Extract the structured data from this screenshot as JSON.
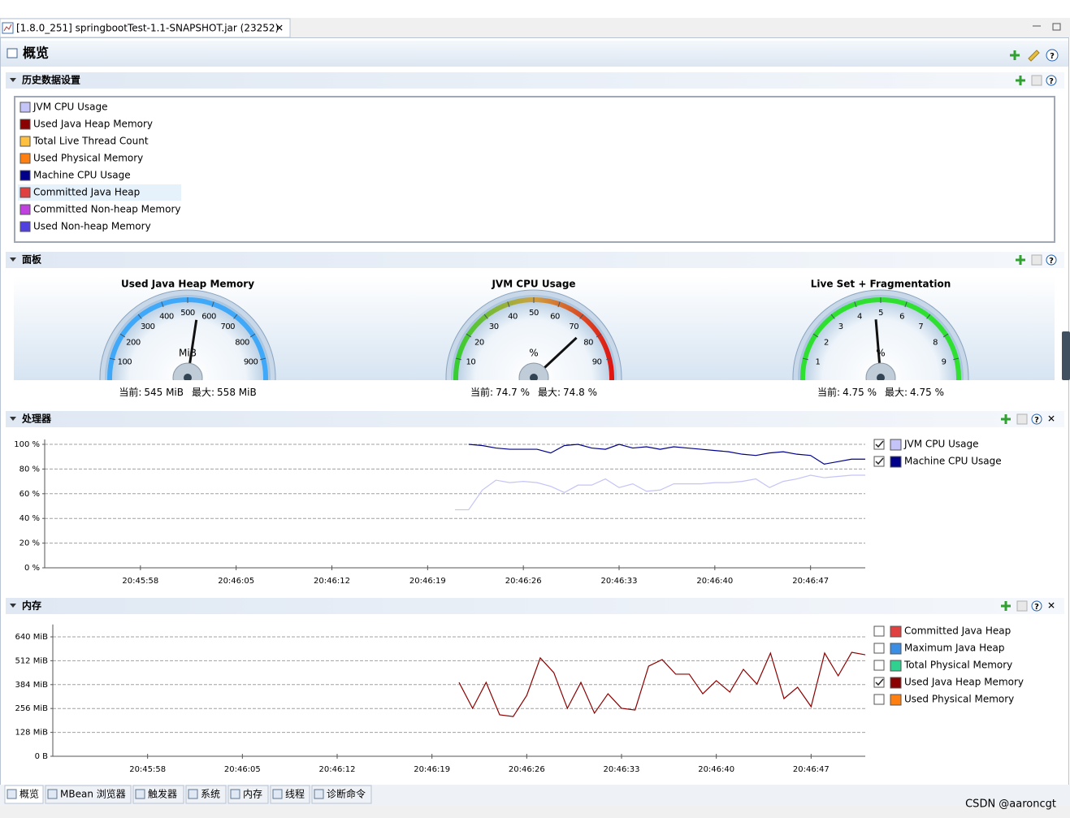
{
  "tab": {
    "title": "[1.8.0_251] springbootTest-1.1-SNAPSHOT.jar (23252)"
  },
  "page_title": "概览",
  "history": {
    "title": "历史数据设置",
    "highlighted_index": 5,
    "items": [
      {
        "name": "JVM CPU Usage",
        "color": "#c4c4f8"
      },
      {
        "name": "Used Java Heap Memory",
        "color": "#8b0000"
      },
      {
        "name": "Total Live Thread Count",
        "color": "#ffc040"
      },
      {
        "name": "Used Physical Memory",
        "color": "#ff8010"
      },
      {
        "name": "Machine CPU Usage",
        "color": "#00008b"
      },
      {
        "name": "Committed Java Heap",
        "color": "#e04040"
      },
      {
        "name": "Committed Non-heap Memory",
        "color": "#c040e0"
      },
      {
        "name": "Used Non-heap Memory",
        "color": "#5040e0"
      }
    ]
  },
  "dashboard": {
    "title": "面板",
    "current_label": "当前:",
    "max_label": "最大:",
    "gauges": [
      {
        "title": "Used Java Heap Memory",
        "unit": "MiB",
        "lim": [
          0,
          1000
        ],
        "ticks": [
          0,
          100,
          200,
          300,
          400,
          500,
          600,
          700,
          800,
          900,
          1000
        ],
        "value": 545,
        "value_label": "545 MiB",
        "max": 558,
        "max_label": "558 MiB",
        "arc_colors": [
          "#40a8f8",
          "#40a8f8"
        ]
      },
      {
        "title": "JVM CPU Usage",
        "unit": "%",
        "lim": [
          0,
          100
        ],
        "ticks": [
          0,
          10,
          20,
          30,
          40,
          50,
          60,
          70,
          80,
          90,
          100
        ],
        "value": 74.7,
        "value_label": "74.7 %",
        "max": 74.8,
        "max_label": "74.8 %",
        "arc_colors": [
          "#30d030",
          "#d0a040",
          "#e01010"
        ]
      },
      {
        "title": "Live Set + Fragmentation",
        "unit": "%",
        "lim": [
          0,
          10
        ],
        "ticks": [
          0,
          1,
          2,
          3,
          4,
          5,
          6,
          7,
          8,
          9,
          10
        ],
        "value": 4.75,
        "value_label": "4.75 %",
        "max": 4.75,
        "max_label": "4.75 %",
        "arc_colors": [
          "#30e030",
          "#30e030"
        ]
      }
    ]
  },
  "chart_data": [
    {
      "type": "line",
      "title": "处理器",
      "grid": true,
      "x": [
        "20:46:21",
        "20:46:22",
        "20:46:23",
        "20:46:24",
        "20:46:25",
        "20:46:26",
        "20:46:27",
        "20:46:28",
        "20:46:29",
        "20:46:30",
        "20:46:31",
        "20:46:32",
        "20:46:33",
        "20:46:34",
        "20:46:35",
        "20:46:36",
        "20:46:37",
        "20:46:38",
        "20:46:39",
        "20:46:40",
        "20:46:41",
        "20:46:42",
        "20:46:43",
        "20:46:44",
        "20:46:45",
        "20:46:46",
        "20:46:47",
        "20:46:48",
        "20:46:49",
        "20:46:50",
        "20:46:51"
      ],
      "xlim": [
        "20:45:51",
        "20:46:51"
      ],
      "xticks": [
        "20:45:58",
        "20:46:05",
        "20:46:12",
        "20:46:19",
        "20:46:26",
        "20:46:33",
        "20:46:40",
        "20:46:47"
      ],
      "ylim": [
        0,
        100
      ],
      "yticks": [
        {
          "value": 0,
          "label": "0 %"
        },
        {
          "value": 20,
          "label": "20 %"
        },
        {
          "value": 40,
          "label": "40 %"
        },
        {
          "value": 60,
          "label": "60 %"
        },
        {
          "value": 80,
          "label": "80 %"
        },
        {
          "value": 100,
          "label": "100 %"
        }
      ],
      "series": [
        {
          "name": "JVM CPU Usage",
          "color": "#c4c4f8",
          "checked": true,
          "values": [
            47,
            47,
            63,
            71,
            69,
            70,
            69,
            66,
            61,
            67,
            67,
            72,
            65,
            68,
            62,
            63,
            68,
            68,
            68,
            69,
            69,
            70,
            72,
            65,
            70,
            72,
            75,
            73,
            74,
            75,
            75
          ]
        },
        {
          "name": "Machine CPU Usage",
          "color": "#00008b",
          "checked": true,
          "values": [
            null,
            100,
            99,
            97,
            96,
            96,
            96,
            93,
            99,
            100,
            97,
            96,
            100,
            97,
            98,
            96,
            98,
            97,
            96,
            95,
            94,
            92,
            91,
            93,
            94,
            92,
            91,
            84,
            86,
            88,
            88
          ]
        }
      ]
    },
    {
      "type": "line",
      "title": "内存",
      "grid": true,
      "x": [
        "20:46:21",
        "20:46:22",
        "20:46:23",
        "20:46:24",
        "20:46:25",
        "20:46:26",
        "20:46:27",
        "20:46:28",
        "20:46:29",
        "20:46:30",
        "20:46:31",
        "20:46:32",
        "20:46:33",
        "20:46:34",
        "20:46:35",
        "20:46:36",
        "20:46:37",
        "20:46:38",
        "20:46:39",
        "20:46:40",
        "20:46:41",
        "20:46:42",
        "20:46:43",
        "20:46:44",
        "20:46:45",
        "20:46:46",
        "20:46:47",
        "20:46:48",
        "20:46:49",
        "20:46:50",
        "20:46:51"
      ],
      "xlim": [
        "20:45:51",
        "20:46:51"
      ],
      "xticks": [
        "20:45:58",
        "20:46:05",
        "20:46:12",
        "20:46:19",
        "20:46:26",
        "20:46:33",
        "20:46:40",
        "20:46:47"
      ],
      "ylim": [
        0,
        680
      ],
      "yticks": [
        {
          "value": 0,
          "label": "0 B"
        },
        {
          "value": 128,
          "label": "128 MiB"
        },
        {
          "value": 256,
          "label": "256 MiB"
        },
        {
          "value": 384,
          "label": "384 MiB"
        },
        {
          "value": 512,
          "label": "512 MiB"
        },
        {
          "value": 640,
          "label": "640 MiB"
        }
      ],
      "series": [
        {
          "name": "Committed Java Heap",
          "color": "#e04040",
          "checked": false
        },
        {
          "name": "Maximum Java Heap",
          "color": "#3a8ee6",
          "checked": false
        },
        {
          "name": "Total Physical Memory",
          "color": "#30d090",
          "checked": false
        },
        {
          "name": "Used Java Heap Memory",
          "color": "#8b0000",
          "checked": true,
          "values": [
            396,
            257,
            396,
            222,
            213,
            326,
            527,
            448,
            257,
            396,
            231,
            335,
            257,
            248,
            483,
            518,
            440,
            440,
            335,
            405,
            344,
            466,
            387,
            553,
            309,
            370,
            266,
            553,
            431,
            557,
            544
          ]
        },
        {
          "name": "Used Physical Memory",
          "color": "#ff8010",
          "checked": false
        }
      ]
    }
  ],
  "bottom_tabs": [
    "概览",
    "MBean 浏览器",
    "触发器",
    "系统",
    "内存",
    "线程",
    "诊断命令"
  ],
  "watermark": "CSDN @aaroncgt"
}
